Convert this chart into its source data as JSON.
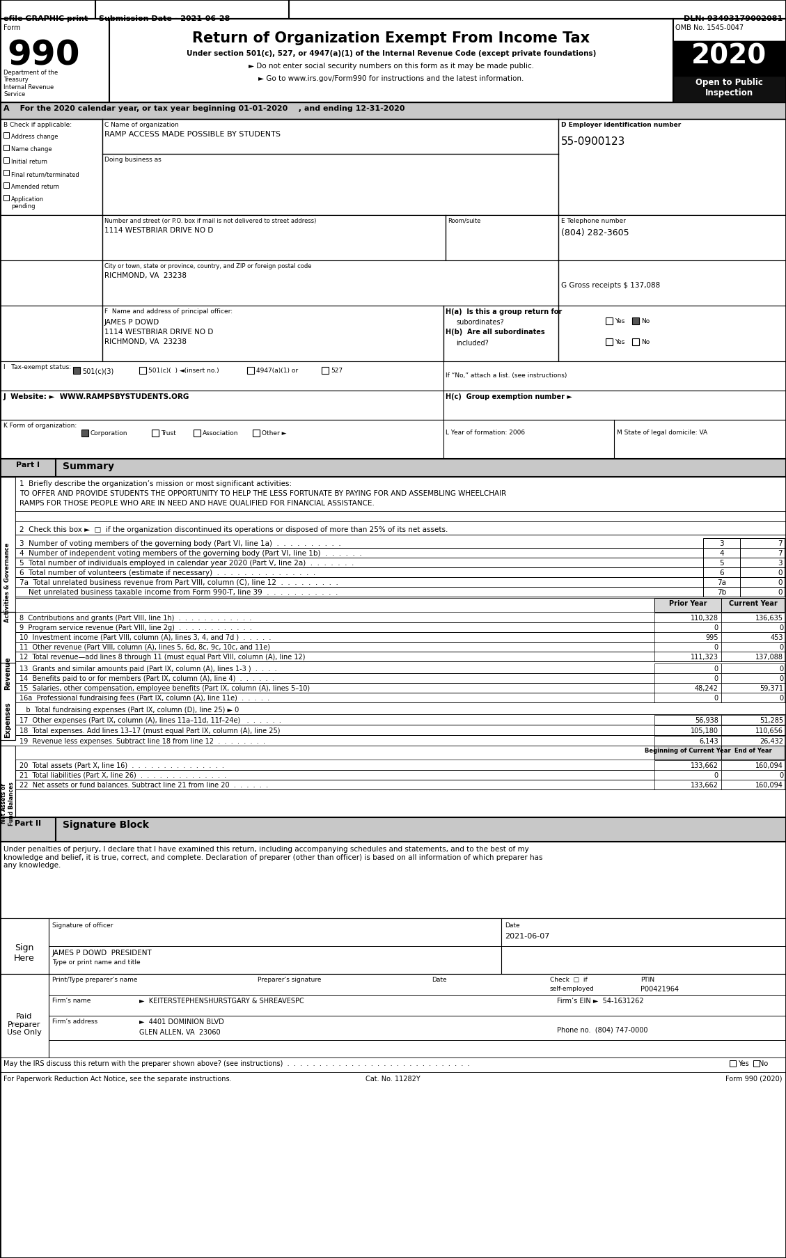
{
  "efile_bar": "efile GRAPHIC print",
  "submission_date": "Submission Date - 2021-06-28",
  "dln": "DLN: 93493179002081",
  "form_number": "990",
  "main_title": "Return of Organization Exempt From Income Tax",
  "subtitle1": "Under section 501(c), 527, or 4947(a)(1) of the Internal Revenue Code (except private foundations)",
  "subtitle2": "► Do not enter social security numbers on this form as it may be made public.",
  "subtitle3": "► Go to www.irs.gov/Form990 for instructions and the latest information.",
  "dept_label": "Department of the\nTreasury\nInternal Revenue\nService",
  "omb": "OMB No. 1545-0047",
  "year": "2020",
  "open_label": "Open to Public\nInspection",
  "sec_a": "A  For the 2020 calendar year, or tax year beginning 01-01-2020    , and ending 12-31-2020",
  "org_name": "RAMP ACCESS MADE POSSIBLE BY STUDENTS",
  "dba": "Doing business as",
  "address_label": "Number and street (or P.O. box if mail is not delivered to street address)",
  "room_suite": "Room/suite",
  "address": "1114 WESTBRIAR DRIVE NO D",
  "city_label": "City or town, state or province, country, and ZIP or foreign postal code",
  "city": "RICHMOND, VA  23238",
  "ein_label": "D Employer identification number",
  "ein": "55-0900123",
  "phone_label": "E Telephone number",
  "phone": "(804) 282-3605",
  "gross_label": "G Gross receipts $ 137,088",
  "principal_label": "F  Name and address of principal officer:",
  "principal_name": "JAMES P DOWD",
  "principal_addr1": "1114 WESTBRIAR DRIVE NO D",
  "principal_city": "RICHMOND, VA  23238",
  "ha_label": "H(a)  Is this a group return for",
  "ha_sub": "subordinates?",
  "hb_label": "H(b)  Are all subordinates",
  "hb_sub": "included?",
  "if_no": "If “No,” attach a list. (see instructions)",
  "website": "J  Website: ►  WWW.RAMPSBYSTUDENTS.ORG",
  "hc_label": "H(c)  Group exemption number ►",
  "year_form": "L Year of formation: 2006",
  "state_dom": "M State of legal domicile: VA",
  "mission_label": "1  Briefly describe the organization’s mission or most significant activities:",
  "mission1": "TO OFFER AND PROVIDE STUDENTS THE OPPORTUNITY TO HELP THE LESS FORTUNATE BY PAYING FOR AND ASSEMBLING WHEELCHAIR",
  "mission2": "RAMPS FOR THOSE PEOPLE WHO ARE IN NEED AND HAVE QUALIFIED FOR FINANCIAL ASSISTANCE.",
  "line2": "2  Check this box ►  □  if the organization discontinued its operations or disposed of more than 25% of its net assets.",
  "sig_declaration": "Under penalties of perjury, I declare that I have examined this return, including accompanying schedules and statements, and to the best of my\nknowledge and belief, it is true, correct, and complete. Declaration of preparer (other than officer) is based on all information of which preparer has\nany knowledge.",
  "sig_date": "2021-06-07",
  "sig_name_title": "JAMES P DOWD  PRESIDENT",
  "ptin": "P00421964",
  "firm_name": "►  KEITERSTEPHENSHURSTGARY & SHREAVESPC",
  "firm_ein": "54-1631262",
  "firm_addr": "►  4401 DOMINION BLVD",
  "firm_city": "GLEN ALLEN, VA  23060",
  "firm_phone": "(804) 747-0000",
  "may_discuss": "May the IRS discuss this return with the preparer shown above? (see instructions)  .  .  .  .  .  .  .  .  .  .  .  .  .  .  .  .  .  .  .  .  .  .  .  .  .  .  .  .  .",
  "paperwork": "For Paperwork Reduction Act Notice, see the separate instructions.",
  "cat_no": "Cat. No. 11282Y",
  "form_footer": "Form 990 (2020)"
}
